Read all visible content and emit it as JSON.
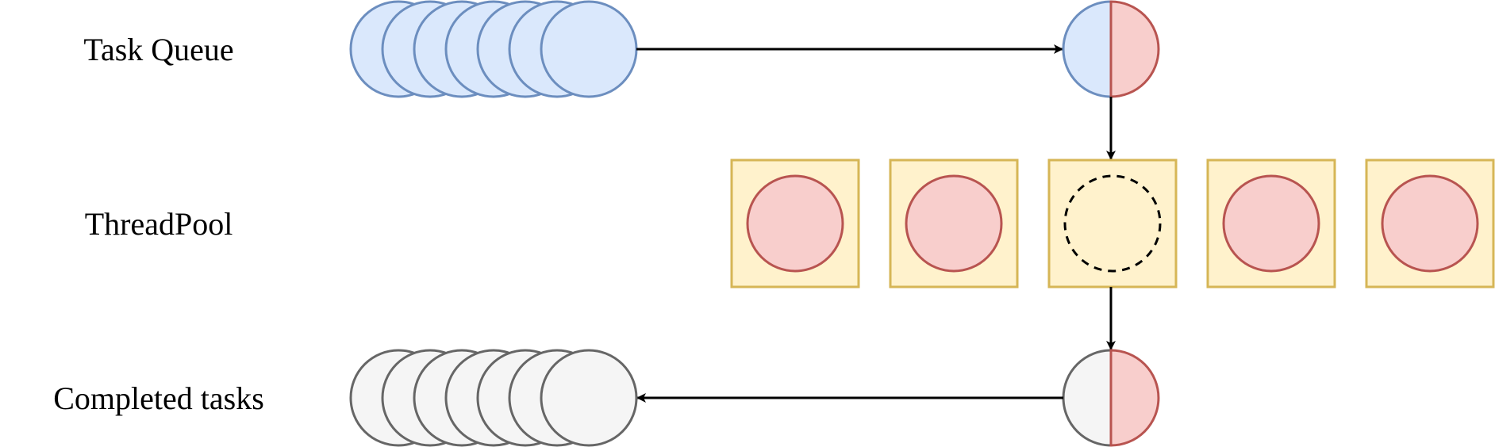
{
  "diagram": {
    "labels": {
      "task_queue": "Task Queue",
      "thread_pool": "ThreadPool",
      "completed_tasks": "Completed tasks"
    },
    "task_queue": {
      "task_count": 7
    },
    "thread_pool": {
      "threads": [
        {
          "state": "busy"
        },
        {
          "state": "busy"
        },
        {
          "state": "idle"
        },
        {
          "state": "busy"
        },
        {
          "state": "busy"
        }
      ]
    },
    "completed_tasks": {
      "task_count": 7
    },
    "colors": {
      "queued_task_fill": "#dae8fc",
      "queued_task_stroke": "#6c8ebf",
      "running_task_fill": "#f8cecc",
      "running_task_stroke": "#b85450",
      "thread_fill": "#fff2cc",
      "thread_stroke": "#d6b656",
      "completed_task_fill": "#f5f5f5",
      "completed_task_stroke": "#666666",
      "arrow": "#000000"
    }
  }
}
